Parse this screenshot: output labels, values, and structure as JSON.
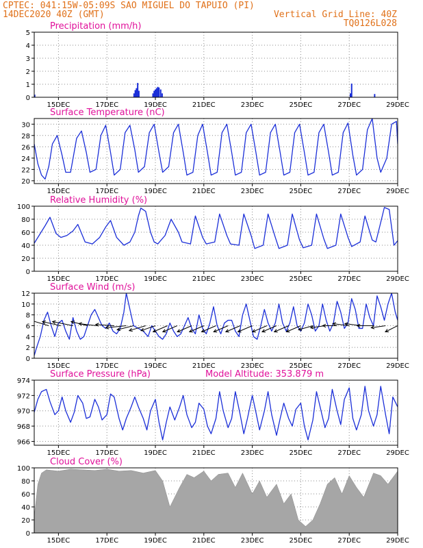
{
  "header": {
    "line1_left": "CPTEC:  041:15W-05:09S  SAO MIGUEL DO TAPUIO (PI)",
    "line2_left": "14DEC2020 40Z (GMT)",
    "line2_right": "Vertical Grid Line: 40Z",
    "line3_right": "TQ0126L028"
  },
  "colors": {
    "header": "#e07018",
    "title": "#e0109a",
    "series": "#1a2ed8",
    "cloud": "#a6a6a6",
    "grid": "#888888"
  },
  "chart_data": [
    {
      "type": "bar",
      "title": "Precipitation (mm/h)",
      "ylim": [
        0,
        5
      ],
      "yticks": [
        "0",
        "1",
        "2",
        "3",
        "4",
        "5"
      ],
      "xlim": [
        14.0,
        29.0
      ],
      "xticks": [
        "15DEC",
        "17DEC",
        "19DEC",
        "21DEC",
        "23DEC",
        "25DEC",
        "27DEC",
        "29DEC"
      ],
      "xtick_days": [
        15,
        17,
        19,
        21,
        23,
        25,
        27,
        29
      ],
      "x": [
        14.02,
        18.12,
        18.17,
        18.22,
        18.27,
        18.32,
        18.9,
        18.95,
        19.0,
        19.05,
        19.1,
        19.15,
        19.22,
        19.28,
        27.05,
        27.1,
        28.05
      ],
      "values": [
        0.2,
        0.3,
        0.55,
        0.7,
        1.1,
        0.5,
        0.3,
        0.5,
        0.6,
        0.7,
        0.8,
        0.75,
        0.6,
        0.3,
        0.3,
        1.05,
        0.25
      ]
    },
    {
      "type": "line",
      "title": "Surface Temperature (nC)",
      "ylim": [
        19.5,
        31
      ],
      "yticks": [
        "20",
        "22",
        "24",
        "26",
        "28",
        "30"
      ],
      "xlim": [
        14.0,
        29.0
      ],
      "xticks": [
        "15DEC",
        "17DEC",
        "19DEC",
        "21DEC",
        "23DEC",
        "25DEC",
        "27DEC",
        "29DEC"
      ],
      "xtick_days": [
        15,
        17,
        19,
        21,
        23,
        25,
        27,
        29
      ],
      "x": [
        14.0,
        14.15,
        14.3,
        14.45,
        14.6,
        14.75,
        14.95,
        15.15,
        15.3,
        15.5,
        15.75,
        15.95,
        16.15,
        16.3,
        16.55,
        16.75,
        16.95,
        17.15,
        17.3,
        17.55,
        17.75,
        17.95,
        18.15,
        18.3,
        18.55,
        18.75,
        18.95,
        19.15,
        19.3,
        19.55,
        19.75,
        19.95,
        20.15,
        20.3,
        20.55,
        20.75,
        20.95,
        21.15,
        21.3,
        21.55,
        21.75,
        21.95,
        22.15,
        22.3,
        22.55,
        22.75,
        22.95,
        23.15,
        23.3,
        23.55,
        23.75,
        23.95,
        24.15,
        24.3,
        24.55,
        24.75,
        24.95,
        25.15,
        25.3,
        25.55,
        25.75,
        25.95,
        26.15,
        26.3,
        26.55,
        26.75,
        26.95,
        27.15,
        27.3,
        27.55,
        27.75,
        27.95,
        28.15,
        28.3,
        28.55,
        28.75,
        28.95,
        29.0
      ],
      "values": [
        26.5,
        23.0,
        21.0,
        20.3,
        22.5,
        26.5,
        28.0,
        24.5,
        21.5,
        21.5,
        27.5,
        28.8,
        25.0,
        21.5,
        22.0,
        28.0,
        29.8,
        25.0,
        21.0,
        22.0,
        28.5,
        29.8,
        25.5,
        21.5,
        22.5,
        28.5,
        30.0,
        25.0,
        21.5,
        22.5,
        28.5,
        30.0,
        25.0,
        21.0,
        21.5,
        28.0,
        30.0,
        25.0,
        21.0,
        21.5,
        28.5,
        30.0,
        25.0,
        21.0,
        21.5,
        28.5,
        30.0,
        25.0,
        21.0,
        21.5,
        28.5,
        30.0,
        25.0,
        21.0,
        21.5,
        28.5,
        30.0,
        25.0,
        21.0,
        21.5,
        28.5,
        30.0,
        25.0,
        21.0,
        21.5,
        28.5,
        30.2,
        24.5,
        21.0,
        22.0,
        29.0,
        31.0,
        24.0,
        21.5,
        24.0,
        30.0,
        30.5,
        26.5
      ]
    },
    {
      "type": "line",
      "title": "Relative Humidity (%)",
      "ylim": [
        0,
        100
      ],
      "yticks": [
        "0",
        "20",
        "40",
        "60",
        "80",
        "100"
      ],
      "xlim": [
        14.0,
        29.0
      ],
      "xticks": [
        "15DEC",
        "17DEC",
        "19DEC",
        "21DEC",
        "23DEC",
        "25DEC",
        "27DEC",
        "29DEC"
      ],
      "xtick_days": [
        15,
        17,
        19,
        21,
        23,
        25,
        27,
        29
      ],
      "x": [
        14.0,
        14.2,
        14.45,
        14.65,
        14.9,
        15.1,
        15.35,
        15.6,
        15.8,
        16.1,
        16.4,
        16.7,
        16.95,
        17.15,
        17.4,
        17.7,
        17.95,
        18.15,
        18.3,
        18.4,
        18.6,
        18.8,
        18.95,
        19.1,
        19.4,
        19.65,
        19.95,
        20.1,
        20.45,
        20.65,
        20.95,
        21.1,
        21.45,
        21.65,
        21.95,
        22.1,
        22.45,
        22.65,
        22.95,
        23.1,
        23.45,
        23.65,
        23.95,
        24.1,
        24.45,
        24.65,
        24.95,
        25.1,
        25.45,
        25.65,
        25.95,
        26.1,
        26.45,
        26.65,
        26.95,
        27.1,
        27.45,
        27.65,
        27.95,
        28.1,
        28.3,
        28.45,
        28.65,
        28.85,
        29.0
      ],
      "values": [
        43,
        55,
        70,
        83,
        58,
        52,
        55,
        62,
        72,
        45,
        42,
        52,
        68,
        78,
        52,
        40,
        45,
        60,
        85,
        97,
        92,
        60,
        45,
        42,
        55,
        80,
        60,
        45,
        42,
        85,
        52,
        42,
        45,
        88,
        55,
        42,
        40,
        88,
        55,
        35,
        40,
        88,
        52,
        35,
        40,
        88,
        48,
        36,
        40,
        88,
        50,
        35,
        40,
        88,
        52,
        38,
        45,
        85,
        48,
        45,
        75,
        98,
        95,
        40,
        47
      ]
    },
    {
      "type": "line",
      "title": "Surface Wind (m/s)",
      "ylim": [
        0,
        12
      ],
      "yticks": [
        "0",
        "2",
        "4",
        "6",
        "8",
        "10",
        "12"
      ],
      "xlim": [
        14.0,
        29.0
      ],
      "xticks": [
        "15DEC",
        "17DEC",
        "19DEC",
        "21DEC",
        "23DEC",
        "25DEC",
        "27DEC",
        "29DEC"
      ],
      "xtick_days": [
        15,
        17,
        19,
        21,
        23,
        25,
        27,
        29
      ],
      "x": [
        14.0,
        14.1,
        14.25,
        14.4,
        14.55,
        14.7,
        14.85,
        15.0,
        15.15,
        15.3,
        15.45,
        15.6,
        15.75,
        15.9,
        16.05,
        16.2,
        16.35,
        16.5,
        16.65,
        16.8,
        16.95,
        17.1,
        17.25,
        17.4,
        17.55,
        17.7,
        17.8,
        17.95,
        18.1,
        18.3,
        18.5,
        18.7,
        18.85,
        19.0,
        19.15,
        19.3,
        19.45,
        19.6,
        19.75,
        19.9,
        20.05,
        20.2,
        20.35,
        20.5,
        20.65,
        20.8,
        20.95,
        21.1,
        21.25,
        21.4,
        21.55,
        21.7,
        21.85,
        22.0,
        22.15,
        22.3,
        22.45,
        22.6,
        22.75,
        22.9,
        23.05,
        23.2,
        23.35,
        23.5,
        23.65,
        23.8,
        23.95,
        24.1,
        24.25,
        24.4,
        24.55,
        24.7,
        24.85,
        25.0,
        25.15,
        25.3,
        25.45,
        25.6,
        25.75,
        25.9,
        26.05,
        26.2,
        26.35,
        26.5,
        26.65,
        26.8,
        26.95,
        27.1,
        27.25,
        27.4,
        27.55,
        27.7,
        27.85,
        28.0,
        28.15,
        28.3,
        28.45,
        28.6,
        28.75,
        28.9,
        29.0
      ],
      "values": [
        0.5,
        2.0,
        4.0,
        7.0,
        8.5,
        6.0,
        4.0,
        6.5,
        7.0,
        5.0,
        3.5,
        7.5,
        5.0,
        3.5,
        4.0,
        6.0,
        8.0,
        9.0,
        7.5,
        6.0,
        5.5,
        6.5,
        5.0,
        4.5,
        5.5,
        8.5,
        12.0,
        9.0,
        6.0,
        5.5,
        5.0,
        4.0,
        6.0,
        5.0,
        4.0,
        3.5,
        4.5,
        6.5,
        5.0,
        4.0,
        4.5,
        6.0,
        7.5,
        5.5,
        4.5,
        8.0,
        5.5,
        4.5,
        6.5,
        9.5,
        6.0,
        4.5,
        6.5,
        7.0,
        7.0,
        5.0,
        4.0,
        8.0,
        10.0,
        7.0,
        4.0,
        3.5,
        6.0,
        9.0,
        6.5,
        5.0,
        6.5,
        10.0,
        6.5,
        5.0,
        6.5,
        9.5,
        6.0,
        5.0,
        6.5,
        10.0,
        8.0,
        5.0,
        6.0,
        10.0,
        7.0,
        5.0,
        6.5,
        10.5,
        8.5,
        5.5,
        6.5,
        11.0,
        9.0,
        5.5,
        5.5,
        10.0,
        7.5,
        6.0,
        11.5,
        9.5,
        7.0,
        10.0,
        12.0,
        8.5,
        7.0
      ],
      "vectors": {
        "x": [
          14.6,
          15.1,
          15.6,
          16.2,
          16.6,
          17.3,
          17.8,
          18.1,
          18.6,
          19.0,
          19.5,
          19.9,
          20.5,
          21.0,
          21.5,
          22.0,
          22.5,
          23.0,
          23.6,
          24.0,
          24.5,
          25.0,
          25.5,
          26.0,
          26.5,
          27.0,
          27.5,
          28.0,
          28.5,
          29.0
        ],
        "u": [
          -5,
          -4.5,
          -5,
          -4,
          -4.5,
          -4.5,
          -5,
          -4,
          -4,
          -3.5,
          -3.5,
          -3.5,
          -3.5,
          -3.5,
          -3.5,
          -3.5,
          -3.5,
          -3.5,
          -3.5,
          -3.5,
          -3.5,
          -3.5,
          -3.5,
          -3.5,
          -3.5,
          -4,
          -4,
          -4,
          -3.5,
          -3
        ],
        "v": [
          1.5,
          1.0,
          1.0,
          1.0,
          0.5,
          0.3,
          -0.5,
          -1.0,
          -1.2,
          -1.2,
          -1.5,
          -1.5,
          -1.5,
          -1.5,
          -1.5,
          -1.5,
          -1.5,
          -1.5,
          -1.5,
          -1.5,
          -1.5,
          -1.5,
          -1.0,
          -0.5,
          0.0,
          0.5,
          0.5,
          0.0,
          -0.5,
          -1.5
        ]
      }
    },
    {
      "type": "line",
      "title": "Surface Pressure (hPa)",
      "annotation": "Model Altitude: 353.879 m",
      "ylim": [
        965.5,
        974
      ],
      "yticks": [
        "966",
        "968",
        "970",
        "972",
        "974"
      ],
      "xlim": [
        14.0,
        29.0
      ],
      "xticks": [
        "15DEC",
        "17DEC",
        "19DEC",
        "21DEC",
        "23DEC",
        "25DEC",
        "27DEC",
        "29DEC"
      ],
      "xtick_days": [
        15,
        17,
        19,
        21,
        23,
        25,
        27,
        29
      ],
      "x": [
        14.0,
        14.15,
        14.3,
        14.5,
        14.65,
        14.85,
        15.0,
        15.15,
        15.3,
        15.5,
        15.65,
        15.8,
        16.0,
        16.15,
        16.3,
        16.5,
        16.65,
        16.8,
        17.0,
        17.15,
        17.3,
        17.5,
        17.65,
        17.8,
        18.0,
        18.15,
        18.3,
        18.5,
        18.65,
        18.8,
        19.0,
        19.15,
        19.3,
        19.45,
        19.6,
        19.8,
        20.0,
        20.15,
        20.3,
        20.5,
        20.65,
        20.8,
        21.0,
        21.15,
        21.3,
        21.5,
        21.65,
        21.8,
        22.0,
        22.15,
        22.3,
        22.5,
        22.65,
        22.8,
        23.0,
        23.15,
        23.3,
        23.5,
        23.65,
        23.8,
        24.0,
        24.15,
        24.3,
        24.5,
        24.65,
        24.8,
        25.0,
        25.15,
        25.3,
        25.5,
        25.65,
        25.8,
        26.0,
        26.15,
        26.3,
        26.5,
        26.65,
        26.8,
        27.0,
        27.15,
        27.3,
        27.5,
        27.65,
        27.8,
        28.0,
        28.15,
        28.3,
        28.5,
        28.65,
        28.8,
        29.0
      ],
      "values": [
        969.8,
        971.5,
        972.5,
        972.8,
        971.2,
        969.5,
        970.0,
        971.8,
        970.0,
        968.5,
        969.8,
        972.0,
        971.0,
        969.0,
        969.2,
        971.5,
        970.5,
        968.8,
        969.5,
        972.2,
        971.8,
        969.0,
        967.5,
        969.0,
        970.5,
        971.8,
        970.5,
        969.0,
        967.5,
        970.0,
        971.5,
        968.5,
        966.2,
        968.5,
        970.5,
        968.8,
        970.5,
        972.0,
        969.5,
        967.8,
        968.5,
        971.0,
        970.2,
        968.0,
        967.0,
        969.0,
        972.5,
        970.0,
        967.8,
        969.0,
        972.5,
        969.5,
        967.0,
        969.0,
        972.0,
        969.8,
        967.5,
        970.0,
        972.5,
        969.5,
        966.8,
        969.0,
        971.0,
        969.0,
        968.0,
        970.2,
        971.0,
        968.0,
        966.2,
        968.8,
        972.5,
        970.5,
        967.8,
        969.0,
        972.8,
        970.0,
        968.2,
        971.5,
        973.0,
        969.0,
        967.5,
        969.5,
        973.2,
        970.0,
        968.0,
        969.5,
        973.2,
        969.5,
        967.0,
        971.8,
        970.5
      ]
    },
    {
      "type": "area",
      "title": "Cloud Cover (%)",
      "ylim": [
        0,
        100
      ],
      "yticks": [
        "0",
        "20",
        "40",
        "60",
        "80",
        "100"
      ],
      "xlim": [
        14.0,
        29.0
      ],
      "xticks": [
        "15DEC",
        "17DEC",
        "19DEC",
        "21DEC",
        "23DEC",
        "25DEC",
        "27DEC",
        "29DEC"
      ],
      "xtick_days": [
        15,
        17,
        19,
        21,
        23,
        25,
        27,
        29
      ],
      "x": [
        14.0,
        14.15,
        14.3,
        14.5,
        15.0,
        15.5,
        16.0,
        16.5,
        17.0,
        17.5,
        18.0,
        18.5,
        19.0,
        19.3,
        19.6,
        20.0,
        20.3,
        20.6,
        21.0,
        21.3,
        21.6,
        22.0,
        22.3,
        22.6,
        23.0,
        23.3,
        23.6,
        24.0,
        24.3,
        24.6,
        24.9,
        25.2,
        25.5,
        25.8,
        26.1,
        26.4,
        26.7,
        27.0,
        27.3,
        27.6,
        28.0,
        28.3,
        28.6,
        29.0
      ],
      "values": [
        25,
        75,
        92,
        97,
        95,
        98,
        97,
        96,
        98,
        95,
        96,
        92,
        96,
        80,
        40,
        70,
        90,
        85,
        95,
        80,
        90,
        92,
        70,
        92,
        60,
        80,
        55,
        75,
        45,
        60,
        20,
        10,
        20,
        45,
        75,
        85,
        60,
        88,
        70,
        55,
        92,
        88,
        75,
        95
      ]
    }
  ]
}
